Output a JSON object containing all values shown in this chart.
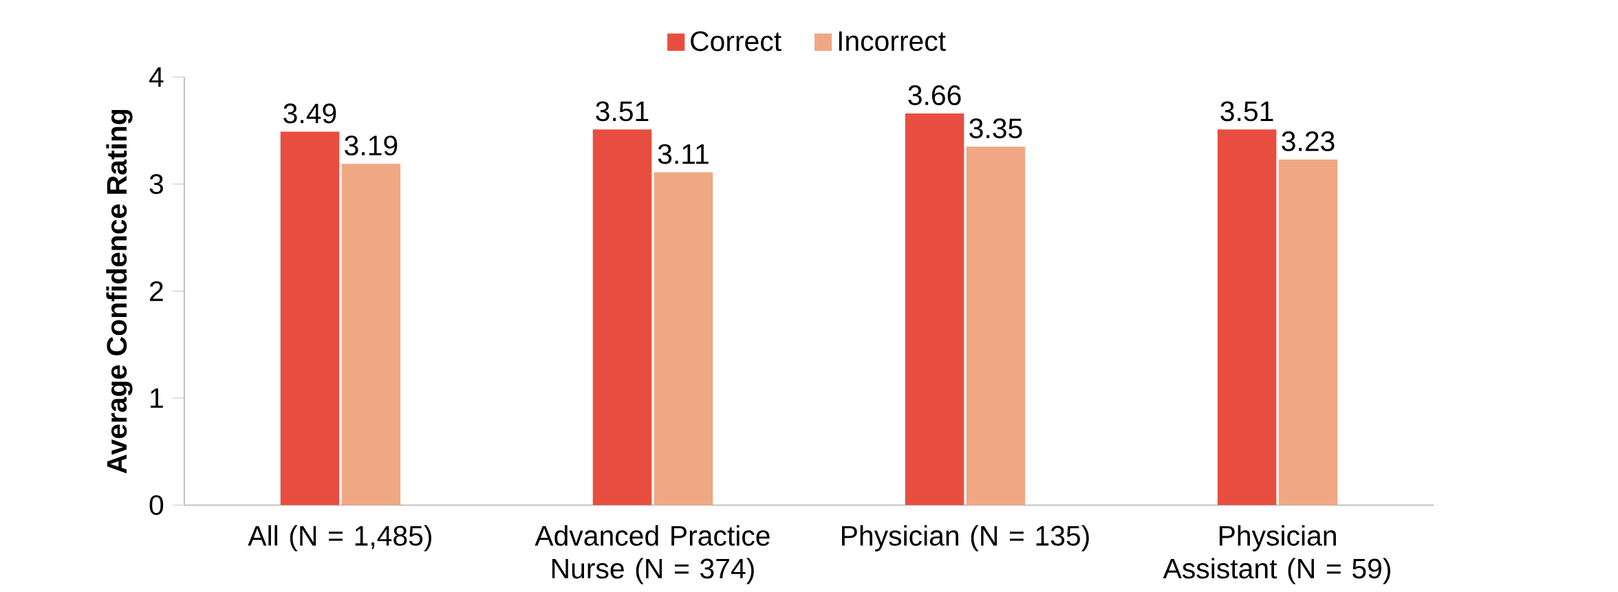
{
  "chart_data": {
    "type": "bar",
    "ylabel": "Average Confidence Rating",
    "categories": [
      "All (N = 1,485)",
      "Advanced Practice Nurse (N = 374)",
      "Physician (N = 135)",
      "Physician Assistant (N = 59)"
    ],
    "series": [
      {
        "name": "Correct",
        "color": "#e84e3f",
        "values": [
          3.49,
          3.51,
          3.66,
          3.51
        ]
      },
      {
        "name": "Incorrect",
        "color": "#f0a884",
        "values": [
          3.19,
          3.11,
          3.35,
          3.23
        ]
      }
    ],
    "ylim": [
      0,
      4
    ],
    "yticks": [
      0,
      1,
      2,
      3,
      4
    ],
    "grid": false,
    "legend": "top",
    "data_labels": true
  }
}
